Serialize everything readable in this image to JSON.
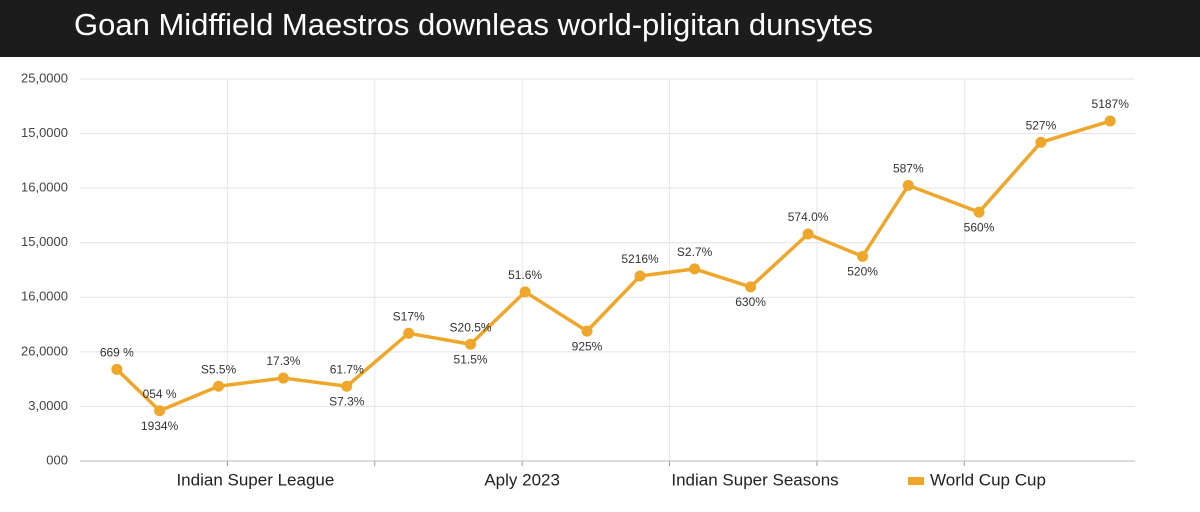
{
  "chart_data": {
    "type": "line",
    "title": "Goan Midffield Maestros downleas world-pligitan dunsytes",
    "ylim": [
      0,
      7
    ],
    "yticks": [
      {
        "value": 0,
        "label": "000"
      },
      {
        "value": 1,
        "label": "3,0000"
      },
      {
        "value": 2,
        "label": "26,0000"
      },
      {
        "value": 3,
        "label": "16,0000"
      },
      {
        "value": 4,
        "label": "15,0000"
      },
      {
        "value": 5,
        "label": "16,0000"
      },
      {
        "value": 6,
        "label": "15,0000"
      },
      {
        "value": 7,
        "label": "25,0000"
      }
    ],
    "xlim": [
      0,
      7.26
    ],
    "xticks": [
      {
        "value": 1.19,
        "label": "Indian Super League"
      },
      {
        "value": 3.0,
        "label": "Aply 2023"
      },
      {
        "value": 4.58,
        "label": "Indian Super Seasons"
      }
    ],
    "xgrid": [
      1,
      2,
      3,
      4,
      5,
      6
    ],
    "grid": true,
    "legend": "bottom-right",
    "series": [
      {
        "name": "World Cup Cup",
        "color": "#eea72a",
        "x": [
          0.25,
          0.54,
          0.94,
          1.38,
          1.81,
          2.23,
          2.65,
          3.02,
          3.44,
          3.8,
          4.17,
          4.55,
          4.94,
          5.31,
          5.62,
          6.1,
          6.52,
          6.99
        ],
        "values": [
          1.68,
          0.92,
          1.37,
          1.52,
          1.37,
          2.34,
          2.14,
          3.1,
          2.38,
          3.39,
          3.52,
          3.19,
          4.16,
          3.75,
          5.05,
          4.56,
          5.84,
          6.23
        ],
        "annotations": [
          {
            "above": "669 %"
          },
          {
            "above": "054 %",
            "below": "1934%"
          },
          {
            "above": "S5.5%"
          },
          {
            "above": "17.3%"
          },
          {
            "above": "61.7%",
            "below": "S7.3%"
          },
          {
            "above": "S17%"
          },
          {
            "above": "S20.5%",
            "below": "51.5%"
          },
          {
            "above": "51.6%"
          },
          {
            "below": "925%"
          },
          {
            "above": "5216%"
          },
          {
            "above": "S2.7%"
          },
          {
            "below": "630%"
          },
          {
            "above": "574.0%"
          },
          {
            "below": "520%"
          },
          {
            "above": "587%"
          },
          {
            "below": "560%"
          },
          {
            "above": "527%"
          },
          {
            "above": "5187%"
          }
        ]
      }
    ]
  }
}
